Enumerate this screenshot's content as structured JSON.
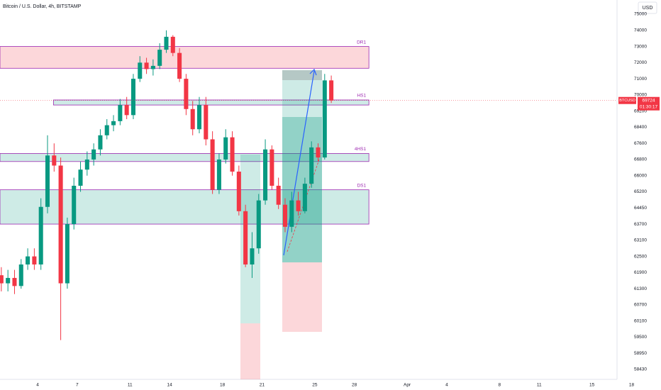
{
  "chart_data": {
    "type": "candlestick",
    "title": "Bitcoin / U.S. Dollar, 4h, BITSTAMP",
    "currency": "USD",
    "symbol": "BTCUSD",
    "last_price": 69724,
    "countdown": "01:30:17",
    "up_color": "#089981",
    "down_color": "#f23645",
    "x": [
      1.25,
      1.75,
      2.25,
      2.75,
      3.25,
      3.75,
      4.25,
      4.75,
      5.25,
      5.75,
      6.25,
      6.75,
      7.25,
      7.75,
      8.25,
      8.75,
      9.25,
      9.75,
      10.25,
      10.75,
      11.25,
      11.75,
      12.25,
      12.75,
      13.25,
      13.75,
      14.25,
      14.75,
      15.25,
      15.75,
      16.25,
      16.75,
      17.25,
      17.75,
      18.25,
      18.75,
      19.25,
      19.75,
      20.25,
      20.75,
      21.25,
      21.75,
      22.25,
      22.75,
      23.25,
      23.75,
      24.25,
      24.75,
      25.25,
      25.75,
      26.25
    ],
    "open": [
      61800,
      61500,
      61700,
      61400,
      62200,
      62500,
      62200,
      64500,
      67000,
      66500,
      61500,
      63700,
      65500,
      66300,
      66800,
      67300,
      68000,
      68500,
      68700,
      69500,
      69000,
      71000,
      72000,
      71600,
      71800,
      72800,
      73600,
      72600,
      71000,
      69300,
      68300,
      69500,
      67800,
      65300,
      66800,
      67900,
      66200,
      64300,
      62200,
      62800,
      64800,
      67300,
      65500,
      64600,
      63600,
      64800,
      64300,
      65600,
      67400,
      66900,
      70900
    ],
    "high": [
      62100,
      62000,
      62000,
      62400,
      62800,
      62800,
      64900,
      68000,
      67600,
      66900,
      64000,
      65900,
      66700,
      67200,
      67600,
      68300,
      68800,
      69000,
      69800,
      69900,
      71300,
      72400,
      72300,
      72200,
      73200,
      74000,
      73700,
      72900,
      71300,
      69700,
      69900,
      69900,
      68200,
      67100,
      68300,
      68200,
      66500,
      64600,
      63400,
      65100,
      67800,
      67500,
      65900,
      64900,
      65200,
      65200,
      65900,
      67700,
      67600,
      71300,
      71200
    ],
    "low": [
      61200,
      61200,
      61100,
      61300,
      62000,
      62000,
      62000,
      64200,
      66200,
      59400,
      61300,
      63500,
      65200,
      66000,
      66500,
      67000,
      67800,
      68200,
      68500,
      68800,
      68800,
      70800,
      71300,
      71200,
      71600,
      72600,
      72400,
      70800,
      69000,
      68000,
      68100,
      67500,
      65100,
      65100,
      66600,
      66000,
      64100,
      62100,
      61700,
      62600,
      64600,
      65300,
      64400,
      63400,
      63400,
      64100,
      64200,
      65400,
      66700,
      66800,
      69600
    ],
    "close": [
      61500,
      61700,
      61400,
      62200,
      62500,
      62200,
      64500,
      67000,
      66500,
      61500,
      63700,
      65500,
      66300,
      66800,
      67300,
      68000,
      68500,
      68700,
      69500,
      69000,
      71000,
      72000,
      71600,
      71800,
      72800,
      73600,
      72600,
      71000,
      69300,
      68300,
      69500,
      67800,
      65300,
      66800,
      67900,
      66200,
      64300,
      62200,
      62800,
      64800,
      67300,
      65500,
      64600,
      63600,
      64800,
      64300,
      65600,
      67400,
      66900,
      70900,
      69724
    ],
    "zones": [
      {
        "name": "DR1",
        "top": 73000,
        "bottom": 71650,
        "color": "#f23645",
        "start": 1.15
      },
      {
        "name": "HS1",
        "top": 69750,
        "bottom": 69500,
        "color": "#089981",
        "start": 5.2
      },
      {
        "name": "4HS1",
        "top": 67100,
        "bottom": 66700,
        "color": "#089981",
        "start": 1.15
      },
      {
        "name": "DS1",
        "top": 65300,
        "bottom": 63700,
        "color": "#089981",
        "start": 1.15
      }
    ],
    "zone_end": 29.1,
    "xlim": [
      1.15,
      47.9
    ],
    "xticks": [
      4,
      7,
      11,
      14,
      18,
      21,
      25,
      28,
      {
        "value": 32,
        "label": "Apr"
      },
      {
        "value": 35,
        "label": "4"
      },
      {
        "value": 39,
        "label": "8"
      },
      {
        "value": 42,
        "label": "11"
      },
      {
        "value": 46,
        "label": "15"
      },
      {
        "value": 49,
        "label": "18"
      }
    ],
    "yticks": [
      75000,
      74000,
      73000,
      72000,
      71000,
      70000,
      69200,
      68400,
      67600,
      66800,
      66000,
      65200,
      64450,
      63700,
      63100,
      62500,
      61900,
      61300,
      60700,
      60100,
      59500,
      58950,
      58430
    ]
  }
}
